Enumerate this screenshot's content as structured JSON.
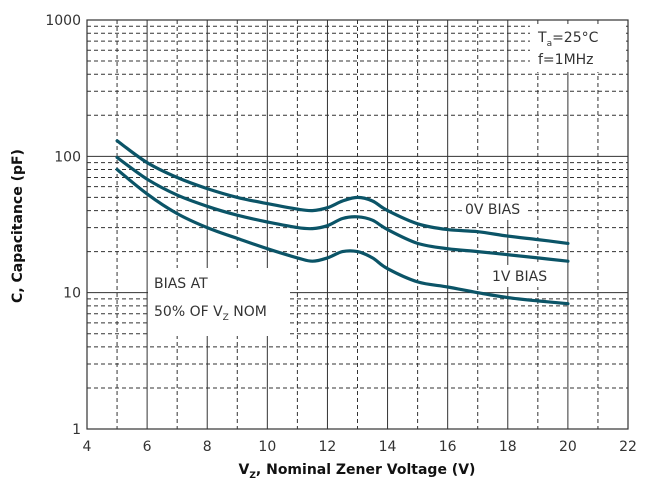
{
  "chart_data": {
    "type": "line",
    "xlabel_main": "V",
    "xlabel_sub": "Z",
    "xlabel_rest": ", Nominal Zener Voltage (V)",
    "ylabel": "C, Capacitance (pF)",
    "x_scale": "linear",
    "y_scale": "log",
    "xlim": [
      4,
      22
    ],
    "ylim": [
      1,
      1000
    ],
    "x_ticks": [
      "4",
      "6",
      "8",
      "10",
      "12",
      "14",
      "16",
      "18",
      "20",
      "22"
    ],
    "y_ticks": [
      "1",
      "10",
      "100",
      "1000"
    ],
    "grid": true,
    "series": [
      {
        "x": [
          5,
          6,
          7,
          8,
          9,
          10,
          11,
          11.5,
          12,
          12.5,
          13,
          13.5,
          14,
          15,
          16,
          17,
          18,
          19,
          20
        ],
        "values": [
          130,
          90,
          70,
          58,
          50,
          45,
          41,
          40,
          42,
          47,
          50,
          47,
          40,
          32,
          29,
          28,
          26,
          24.5,
          23
        ]
      },
      {
        "x": [
          5,
          6,
          7,
          8,
          9,
          10,
          11,
          11.5,
          12,
          12.5,
          13,
          13.5,
          14,
          15,
          16,
          17,
          18,
          19,
          20
        ],
        "values": [
          98,
          68,
          52,
          43,
          37,
          33,
          30,
          29.5,
          31,
          35,
          36,
          34,
          29,
          23,
          21,
          20,
          19,
          18,
          17
        ]
      },
      {
        "x": [
          5,
          6,
          7,
          8,
          9,
          10,
          11,
          11.5,
          12,
          12.5,
          13,
          13.5,
          14,
          15,
          16,
          17,
          18,
          19,
          20
        ],
        "values": [
          80,
          53,
          38,
          30,
          25,
          21,
          18,
          17,
          18,
          20,
          20,
          18,
          15,
          12,
          11,
          10,
          9.2,
          8.7,
          8.3
        ]
      }
    ],
    "annotations": {
      "ta_main": "T",
      "ta_sub": "a",
      "ta_rest": "=25°C",
      "freq": "f=1MHz",
      "bias0": "0V BIAS",
      "bias1": "1V BIAS",
      "note_line1": "BIAS AT",
      "note_line2_main": "50% OF V",
      "note_line2_sub": "Z",
      "note_line2_rest": " NOM"
    },
    "colors": {
      "curve": "#0b5467",
      "grid": "#333333"
    }
  }
}
